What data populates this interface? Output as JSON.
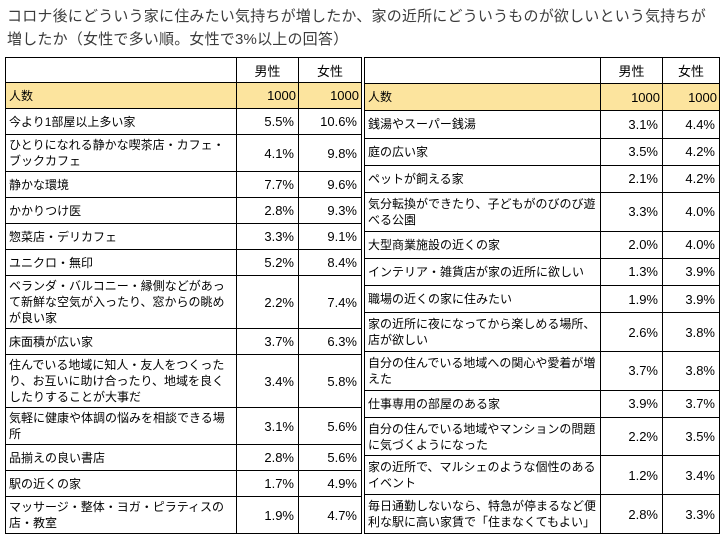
{
  "title": "コロナ後にどういう家に住みたい気持ちが増したか、家の近所にどういうものが欲しいという気持ちが増したか（女性で多い順。女性で3%以上の回答）",
  "highlight_color": "#FCE49E",
  "border_color": "#000000",
  "tables": [
    {
      "header": {
        "label": "",
        "male": "男性",
        "female": "女性"
      },
      "count_row": {
        "label": "人数",
        "male": "1000",
        "female": "1000"
      },
      "rows": [
        {
          "label": "今より1部屋以上多い家",
          "male": "5.5%",
          "female": "10.6%"
        },
        {
          "label": "ひとりになれる静かな喫茶店・カフェ・ブックカフェ",
          "male": "4.1%",
          "female": "9.8%"
        },
        {
          "label": "静かな環境",
          "male": "7.7%",
          "female": "9.6%"
        },
        {
          "label": "かかりつけ医",
          "male": "2.8%",
          "female": "9.3%"
        },
        {
          "label": "惣菜店・デリカフェ",
          "male": "3.3%",
          "female": "9.1%"
        },
        {
          "label": "ユニクロ・無印",
          "male": "5.2%",
          "female": "8.4%"
        },
        {
          "label": "ベランダ・バルコニー・縁側などがあって新鮮な空気が入ったり、窓からの眺めが良い家",
          "male": "2.2%",
          "female": "7.4%"
        },
        {
          "label": "床面積が広い家",
          "male": "3.7%",
          "female": "6.3%"
        },
        {
          "label": "住んでいる地域に知人・友人をつくったり、お互いに助け合ったり、地域を良くしたりすることが大事だ",
          "male": "3.4%",
          "female": "5.8%"
        },
        {
          "label": "気軽に健康や体調の悩みを相談できる場所",
          "male": "3.1%",
          "female": "5.6%"
        },
        {
          "label": "品揃えの良い書店",
          "male": "2.8%",
          "female": "5.6%"
        },
        {
          "label": "駅の近くの家",
          "male": "1.7%",
          "female": "4.9%"
        },
        {
          "label": "マッサージ・整体・ヨガ・ピラティスの店・教室",
          "male": "1.9%",
          "female": "4.7%"
        }
      ]
    },
    {
      "header": {
        "label": "",
        "male": "男性",
        "female": "女性"
      },
      "count_row": {
        "label": "人数",
        "male": "1000",
        "female": "1000"
      },
      "rows": [
        {
          "label": "銭湯やスーパー銭湯",
          "male": "3.1%",
          "female": "4.4%"
        },
        {
          "label": "庭の広い家",
          "male": "3.5%",
          "female": "4.2%"
        },
        {
          "label": "ペットが飼える家",
          "male": "2.1%",
          "female": "4.2%"
        },
        {
          "label": "気分転換ができたり、子どもがのびのび遊べる公園",
          "male": "3.3%",
          "female": "4.0%"
        },
        {
          "label": "大型商業施設の近くの家",
          "male": "2.0%",
          "female": "4.0%"
        },
        {
          "label": "インテリア・雑貨店が家の近所に欲しい",
          "male": "1.3%",
          "female": "3.9%"
        },
        {
          "label": "職場の近くの家に住みたい",
          "male": "1.9%",
          "female": "3.9%"
        },
        {
          "label": "家の近所に夜になってから楽しめる場所、店が欲しい",
          "male": "2.6%",
          "female": "3.8%"
        },
        {
          "label": "自分の住んでいる地域への関心や愛着が増えた",
          "male": "3.7%",
          "female": "3.8%"
        },
        {
          "label": "仕事専用の部屋のある家",
          "male": "3.9%",
          "female": "3.7%"
        },
        {
          "label": "自分の住んでいる地域やマンションの問題に気づくようになった",
          "male": "2.2%",
          "female": "3.5%"
        },
        {
          "label": "家の近所で、マルシェのような個性のあるイベント",
          "male": "1.2%",
          "female": "3.4%"
        },
        {
          "label": "毎日通勤しないなら、特急が停まるなど便利な駅に高い家賃で「住まなくてもよい」",
          "male": "2.8%",
          "female": "3.3%"
        }
      ]
    }
  ]
}
